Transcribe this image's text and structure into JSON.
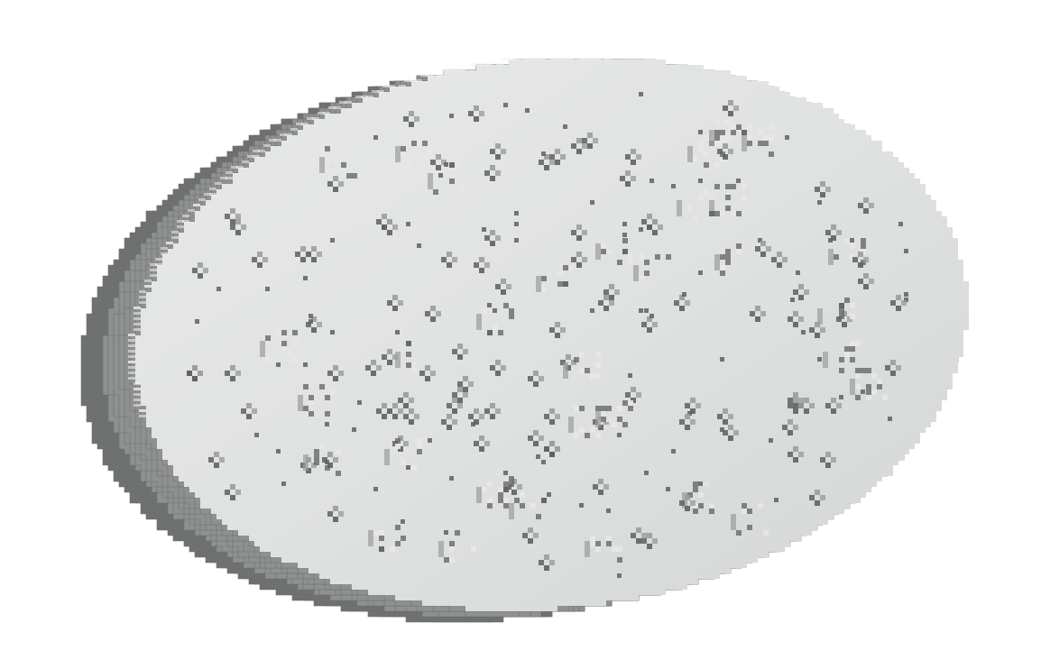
{
  "scene": {
    "subject": "voxel-slab-ellipse",
    "colors": {
      "background": "#ffffff",
      "face": "#dcdedd",
      "face_light": "#e6e7e6",
      "side": "#8f9190",
      "side_dark": "#6f7170",
      "edge_light": "#f2f3f2",
      "speck_shadow": "#5f6160",
      "speck_mid": "#9b9d9c"
    }
  }
}
